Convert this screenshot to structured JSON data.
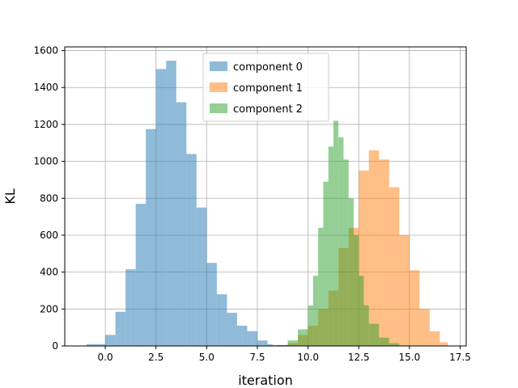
{
  "chart_data": {
    "type": "bar",
    "subtype": "overlapping-histogram",
    "xlabel": "iteration",
    "ylabel": "KL",
    "xlim": [
      -2.0,
      17.8
    ],
    "ylim": [
      0,
      1620
    ],
    "xticks": [
      "0.0",
      "2.5",
      "5.0",
      "7.5",
      "10.0",
      "12.5",
      "15.0",
      "17.5"
    ],
    "yticks": [
      "0",
      "200",
      "400",
      "600",
      "800",
      "1000",
      "1200",
      "1400",
      "1600"
    ],
    "grid": true,
    "legend_position": "top-center",
    "series": [
      {
        "name": "component 0",
        "color": "#1f77b4",
        "alpha": 0.5,
        "bins": [
          [
            -0.93,
            -0.0,
            10
          ],
          [
            -0.0,
            0.25,
            60
          ],
          [
            0.25,
            0.5,
            60
          ],
          [
            0.5,
            0.75,
            185
          ],
          [
            0.75,
            1.0,
            185
          ],
          [
            1.0,
            1.25,
            415
          ],
          [
            1.25,
            1.5,
            415
          ],
          [
            1.5,
            1.75,
            770
          ],
          [
            1.75,
            2.0,
            770
          ],
          [
            2.0,
            2.25,
            1175
          ],
          [
            2.25,
            2.5,
            1175
          ],
          [
            2.5,
            2.75,
            1500
          ],
          [
            2.75,
            3.0,
            1500
          ],
          [
            3.0,
            3.25,
            1545
          ],
          [
            3.25,
            3.5,
            1545
          ],
          [
            3.5,
            3.75,
            1320
          ],
          [
            3.75,
            4.0,
            1320
          ],
          [
            4.0,
            4.25,
            1040
          ],
          [
            4.25,
            4.5,
            1040
          ],
          [
            4.5,
            4.75,
            750
          ],
          [
            4.75,
            5.0,
            750
          ],
          [
            5.0,
            5.25,
            450
          ],
          [
            5.25,
            5.5,
            450
          ],
          [
            5.5,
            5.75,
            280
          ],
          [
            5.75,
            6.0,
            280
          ],
          [
            6.0,
            6.25,
            180
          ],
          [
            6.25,
            6.5,
            180
          ],
          [
            6.5,
            6.75,
            110
          ],
          [
            6.75,
            7.0,
            110
          ],
          [
            7.0,
            7.25,
            80
          ],
          [
            7.25,
            7.5,
            80
          ],
          [
            7.5,
            7.75,
            30
          ],
          [
            7.75,
            8.0,
            30
          ],
          [
            8.0,
            8.25,
            10
          ],
          [
            8.25,
            8.5,
            5
          ],
          [
            8.5,
            8.9,
            3
          ]
        ]
      },
      {
        "name": "component 1",
        "color": "#ff7f0e",
        "alpha": 0.5,
        "bins": [
          [
            8.5,
            9.0,
            5
          ],
          [
            9.0,
            9.5,
            15
          ],
          [
            9.5,
            10.0,
            60
          ],
          [
            10.0,
            10.5,
            110
          ],
          [
            10.5,
            11.0,
            200
          ],
          [
            11.0,
            11.5,
            300
          ],
          [
            11.5,
            12.0,
            530
          ],
          [
            12.0,
            12.5,
            640
          ],
          [
            12.5,
            13.0,
            950
          ],
          [
            13.0,
            13.5,
            1060
          ],
          [
            13.5,
            14.0,
            1010
          ],
          [
            14.0,
            14.5,
            860
          ],
          [
            14.5,
            15.0,
            600
          ],
          [
            15.0,
            15.5,
            410
          ],
          [
            15.5,
            16.0,
            200
          ],
          [
            16.0,
            16.5,
            80
          ],
          [
            16.5,
            16.9,
            20
          ]
        ]
      },
      {
        "name": "component 2",
        "color": "#2ca02c",
        "alpha": 0.5,
        "bins": [
          [
            8.5,
            9.0,
            5
          ],
          [
            9.0,
            9.5,
            30
          ],
          [
            9.5,
            10.0,
            90
          ],
          [
            10.0,
            10.25,
            220
          ],
          [
            10.25,
            10.5,
            380
          ],
          [
            10.5,
            10.75,
            640
          ],
          [
            10.75,
            11.0,
            890
          ],
          [
            11.0,
            11.25,
            1080
          ],
          [
            11.25,
            11.5,
            1220
          ],
          [
            11.5,
            11.75,
            1130
          ],
          [
            11.75,
            12.0,
            1010
          ],
          [
            12.0,
            12.25,
            800
          ],
          [
            12.25,
            12.5,
            600
          ],
          [
            12.5,
            12.75,
            380
          ],
          [
            12.75,
            13.0,
            220
          ],
          [
            13.0,
            13.5,
            120
          ],
          [
            13.5,
            14.0,
            45
          ],
          [
            14.0,
            14.5,
            15
          ],
          [
            14.5,
            14.9,
            3
          ]
        ]
      }
    ]
  }
}
